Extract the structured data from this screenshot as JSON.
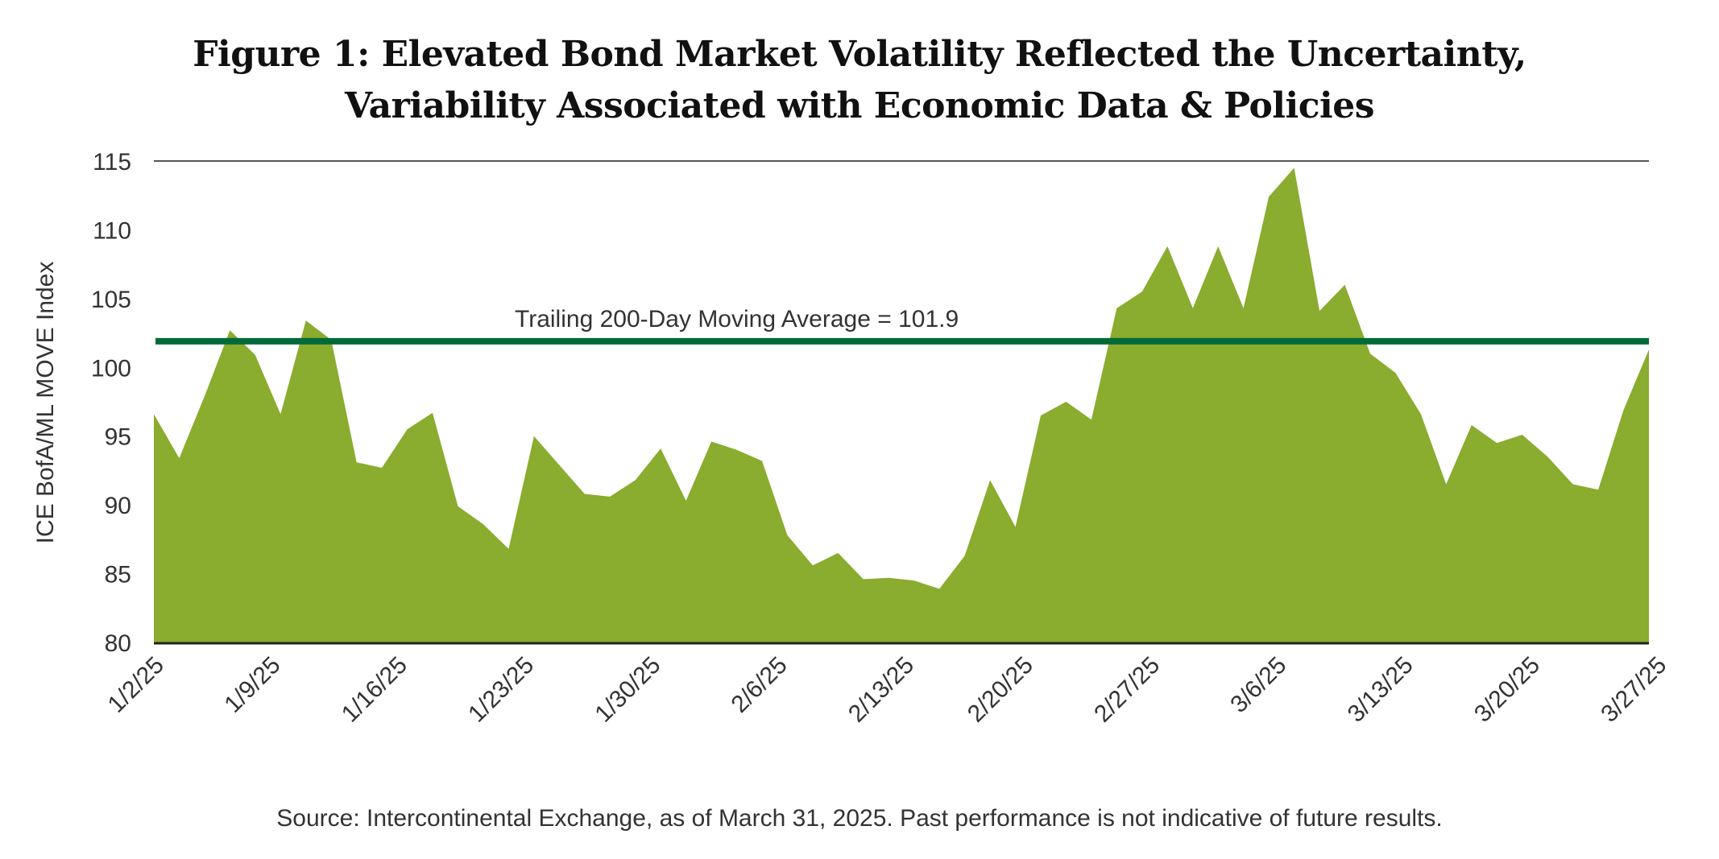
{
  "title_line1": "Figure 1: Elevated Bond Market Volatility Reflected the Uncertainty,",
  "title_line2": "Variability Associated with Economic Data & Policies",
  "footer": "Source: Intercontinental Exchange, as of March 31, 2025. Past performance is not indicative of future results.",
  "chart_data": {
    "type": "area",
    "title": "Figure 1: Elevated Bond Market Volatility Reflected the Uncertainty, Variability Associated with Economic Data & Policies",
    "xlabel": "",
    "ylabel": "ICE BofA/ML MOVE Index",
    "ylim": [
      80,
      115
    ],
    "yticks": [
      80,
      85,
      90,
      95,
      100,
      105,
      110,
      115
    ],
    "x_tick_labels": [
      "1/2/25",
      "1/9/25",
      "1/16/25",
      "1/23/25",
      "1/30/25",
      "2/6/25",
      "2/13/25",
      "2/20/25",
      "2/27/25",
      "3/6/25",
      "3/13/25",
      "3/20/25",
      "3/27/25"
    ],
    "x_tick_index": [
      0,
      4.6,
      9.6,
      14.6,
      19.6,
      24.6,
      29.6,
      34.3,
      39.3,
      44.3,
      49.3,
      54.3,
      59.3
    ],
    "grid": false,
    "legend": "none",
    "series": [
      {
        "name": "ICE BofA/ML MOVE Index",
        "color": "#8AAC2F",
        "values": [
          96.6,
          93.4,
          97.9,
          102.7,
          100.9,
          96.6,
          103.4,
          102.0,
          93.1,
          92.7,
          95.5,
          96.7,
          89.9,
          88.6,
          86.8,
          95.0,
          92.9,
          90.8,
          90.6,
          91.8,
          94.1,
          90.3,
          94.6,
          94.0,
          93.2,
          87.8,
          85.6,
          86.5,
          84.6,
          84.7,
          84.5,
          83.9,
          86.3,
          91.8,
          88.4,
          96.5,
          97.5,
          96.2,
          104.3,
          105.5,
          108.8,
          104.3,
          108.8,
          104.3,
          112.4,
          114.5,
          104.1,
          106.0,
          101.0,
          99.6,
          96.6,
          91.5,
          95.8,
          94.5,
          95.1,
          93.5,
          91.5,
          91.1,
          96.9,
          101.3
        ]
      }
    ],
    "reference_line": {
      "name": "Trailing 200-Day Moving Average",
      "value": 101.9,
      "label": "Trailing 200-Day Moving Average = 101.9",
      "color": "#006A3A"
    }
  }
}
